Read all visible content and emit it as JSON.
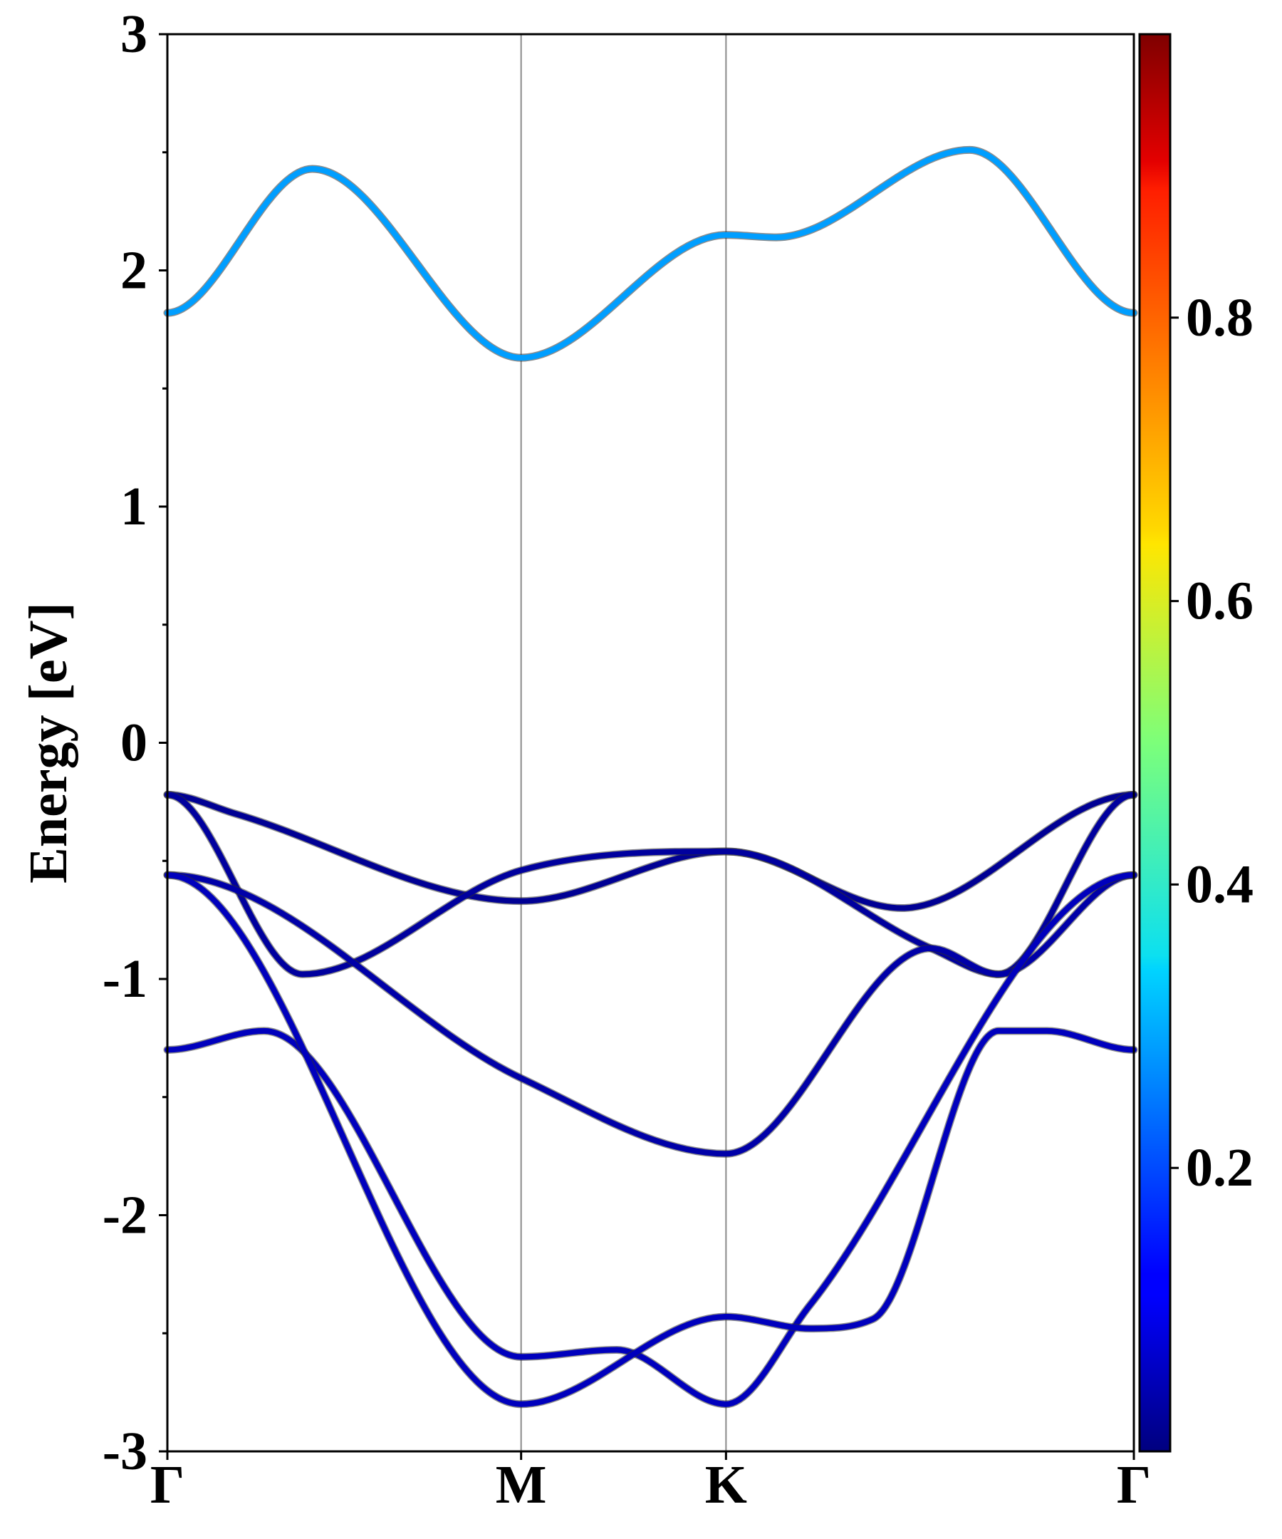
{
  "chart_data": {
    "type": "line",
    "title": "",
    "xlabel": "",
    "ylabel": "Energy [eV]",
    "ylim": [
      -3,
      3
    ],
    "yticks": [
      -3,
      -2,
      -1,
      0,
      1,
      2,
      3
    ],
    "y_minor_step": 0.5,
    "xlim": [
      0,
      1
    ],
    "kpoints": [
      {
        "label": "Γ",
        "x": 0.0
      },
      {
        "label": "M",
        "x": 0.366
      },
      {
        "label": "K",
        "x": 0.578
      },
      {
        "label": "Γ",
        "x": 1.0
      }
    ],
    "colorbar": {
      "colormap": "jet",
      "range": [
        0.0,
        1.0
      ],
      "ticks": [
        "0.2",
        "0.4",
        "0.6",
        "0.8"
      ],
      "tick_values": [
        0.2,
        0.4,
        0.6,
        0.8
      ]
    },
    "grid": false,
    "bands": [
      {
        "weight": 0.28,
        "x": [
          0,
          0.15,
          0.366,
          0.578,
          0.63,
          0.83,
          1.0
        ],
        "y": [
          1.82,
          2.43,
          1.63,
          2.15,
          2.14,
          2.51,
          1.82
        ]
      },
      {
        "weight": 0.02,
        "x": [
          0,
          0.07,
          0.366,
          0.578,
          0.76,
          1.0
        ],
        "y": [
          -0.22,
          -0.3,
          -0.67,
          -0.46,
          -0.7,
          -0.22
        ]
      },
      {
        "weight": 0.03,
        "x": [
          0,
          0.14,
          0.366,
          0.578,
          0.79,
          0.86,
          1.0
        ],
        "y": [
          -0.22,
          -0.98,
          -0.54,
          -0.46,
          -0.87,
          -0.98,
          -0.22
        ]
      },
      {
        "weight": 0.04,
        "x": [
          0,
          0.366,
          0.578,
          0.79,
          0.86,
          1.0
        ],
        "y": [
          -0.56,
          -1.42,
          -1.74,
          -0.87,
          -0.98,
          -0.56
        ]
      },
      {
        "weight": 0.06,
        "x": [
          0,
          0.1,
          0.366,
          0.465,
          0.578,
          0.665,
          1.0
        ],
        "y": [
          -1.3,
          -1.22,
          -2.6,
          -2.57,
          -2.8,
          -2.38,
          -0.56
        ]
      },
      {
        "weight": 0.06,
        "x": [
          0,
          0.366,
          0.578,
          0.665,
          0.73,
          0.86,
          0.91,
          1.0
        ],
        "y": [
          -0.56,
          -2.8,
          -2.43,
          -2.48,
          -2.44,
          -1.22,
          -1.22,
          -1.3
        ]
      }
    ]
  }
}
